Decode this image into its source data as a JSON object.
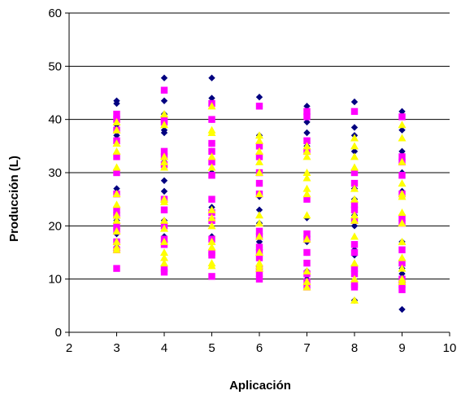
{
  "chart_data": {
    "type": "scatter",
    "title": "",
    "xlabel": "Aplicación",
    "ylabel": "Producción (L)",
    "xlim": [
      2,
      10
    ],
    "ylim": [
      0,
      60
    ],
    "xticks": [
      2,
      3,
      4,
      5,
      6,
      7,
      8,
      9,
      10
    ],
    "yticks": [
      0,
      10,
      20,
      30,
      40,
      50,
      60
    ],
    "grid": "horizontal",
    "legend": "none",
    "series": [
      {
        "marker": "diamond",
        "color": "#000080",
        "x": [
          3,
          3,
          3,
          3,
          3,
          3,
          3,
          3,
          3,
          3,
          3,
          3,
          3,
          3,
          4,
          4,
          4,
          4,
          4,
          4,
          4,
          4,
          4,
          4,
          4,
          4,
          4,
          5,
          5,
          5,
          5,
          5,
          5,
          5,
          5,
          5,
          5,
          5,
          5,
          6,
          6,
          6,
          6,
          6,
          6,
          6,
          6,
          6,
          6,
          6,
          6,
          6,
          6,
          7,
          7,
          7,
          7,
          7,
          7,
          7,
          7,
          7,
          7,
          7,
          8,
          8,
          8,
          8,
          8,
          8,
          8,
          8,
          8,
          8,
          8,
          8,
          9,
          9,
          9,
          9,
          9,
          9,
          9,
          9,
          9,
          9,
          9,
          9
        ],
        "y": [
          43.5,
          43,
          39,
          37,
          33,
          30.5,
          27,
          22,
          21,
          20,
          18.5,
          17,
          16,
          15.5,
          47.8,
          43.5,
          41,
          40,
          38,
          37.5,
          32,
          28.5,
          26.5,
          21,
          20.5,
          18,
          17,
          47.8,
          44,
          40,
          35.5,
          35.5,
          34,
          30,
          23.5,
          22.5,
          18,
          15.5,
          15,
          44.2,
          42.5,
          37,
          33,
          30,
          25.5,
          23,
          20.5,
          17,
          16,
          15.5,
          14.5,
          12.5,
          11.5,
          42.5,
          39.5,
          37.5,
          35,
          34,
          21.5,
          17,
          15,
          11.5,
          10,
          9,
          43.3,
          38.5,
          37,
          34,
          27,
          25,
          22,
          20,
          15.5,
          14.5,
          12.5,
          6,
          41.5,
          40.5,
          38,
          34,
          30,
          26.5,
          20.5,
          17,
          13.5,
          12,
          11,
          4.3
        ]
      },
      {
        "marker": "square",
        "color": "#ff00ff",
        "x": [
          3,
          3,
          3,
          3,
          3,
          3,
          3,
          3,
          3,
          3,
          3,
          3,
          3,
          3,
          4,
          4,
          4,
          4,
          4,
          4,
          4,
          4,
          4,
          4,
          4,
          4,
          4,
          5,
          5,
          5,
          5,
          5,
          5,
          5,
          5,
          5,
          5,
          5,
          5,
          5,
          6,
          6,
          6,
          6,
          6,
          6,
          6,
          6,
          6,
          6,
          6,
          6,
          6,
          6,
          7,
          7,
          7,
          7,
          7,
          7,
          7,
          7,
          7,
          7,
          7,
          7,
          8,
          8,
          8,
          8,
          8,
          8,
          8,
          8,
          8,
          8,
          8,
          8,
          9,
          9,
          9,
          9,
          9,
          9,
          9,
          9,
          9,
          9,
          9,
          9
        ],
        "y": [
          41,
          40,
          38,
          36,
          33,
          30,
          26,
          23,
          22,
          20,
          19,
          17,
          15.5,
          12,
          45.5,
          40,
          39.5,
          34,
          33,
          31.5,
          25,
          23,
          20,
          17.5,
          16.5,
          12,
          11.3,
          43,
          40,
          35.5,
          34,
          32,
          29.5,
          25,
          22.5,
          21,
          17.5,
          15,
          14.5,
          10.5,
          42.5,
          35,
          33,
          30,
          28,
          26,
          19,
          18,
          16,
          15,
          14,
          12,
          11,
          10,
          41.5,
          40.5,
          36,
          34,
          25,
          18.5,
          17.5,
          15,
          13,
          11,
          9.5,
          8.5,
          41.5,
          30,
          28,
          24,
          23,
          21,
          16.5,
          15,
          12,
          11,
          9,
          8.5,
          40.5,
          33,
          32,
          29.5,
          26,
          21.5,
          20.5,
          15.5,
          13,
          10,
          9,
          8
        ]
      },
      {
        "marker": "triangle",
        "color": "#ffff00",
        "x": [
          3,
          3,
          3,
          3,
          3,
          3,
          3,
          3,
          3,
          3,
          3,
          3,
          3,
          4,
          4,
          4,
          4,
          4,
          4,
          4,
          4,
          4,
          4,
          4,
          4,
          4,
          5,
          5,
          5,
          5,
          5,
          5,
          5,
          5,
          5,
          5,
          5,
          5,
          6,
          6,
          6,
          6,
          6,
          6,
          6,
          6,
          6,
          6,
          6,
          6,
          6,
          7,
          7,
          7,
          7,
          7,
          7,
          7,
          7,
          7,
          7,
          7,
          7,
          8,
          8,
          8,
          8,
          8,
          8,
          8,
          8,
          8,
          8,
          8,
          8,
          9,
          9,
          9,
          9,
          9,
          9,
          9,
          9,
          9,
          9,
          9,
          9,
          9
        ],
        "y": [
          39.5,
          38,
          35.5,
          34,
          31,
          26,
          24,
          22,
          21,
          19,
          17,
          16,
          15.5,
          41,
          39,
          33,
          32,
          31,
          25,
          24.5,
          21,
          19.5,
          17,
          15,
          14,
          13,
          42.5,
          38,
          37.5,
          33,
          31,
          23,
          21.5,
          20,
          17,
          16,
          13,
          12.5,
          37,
          36,
          34,
          32,
          30,
          26,
          22,
          20.5,
          18,
          15,
          13,
          12.5,
          12,
          35,
          34,
          33,
          30,
          29,
          27,
          26,
          22,
          17.5,
          11.5,
          9.5,
          8.5,
          36.5,
          35,
          33,
          31,
          27,
          25,
          22,
          21,
          18,
          13,
          10,
          6,
          39,
          36.5,
          32,
          28,
          26,
          25.5,
          22.5,
          20.5,
          17,
          14,
          12,
          10,
          9.5
        ]
      }
    ]
  }
}
